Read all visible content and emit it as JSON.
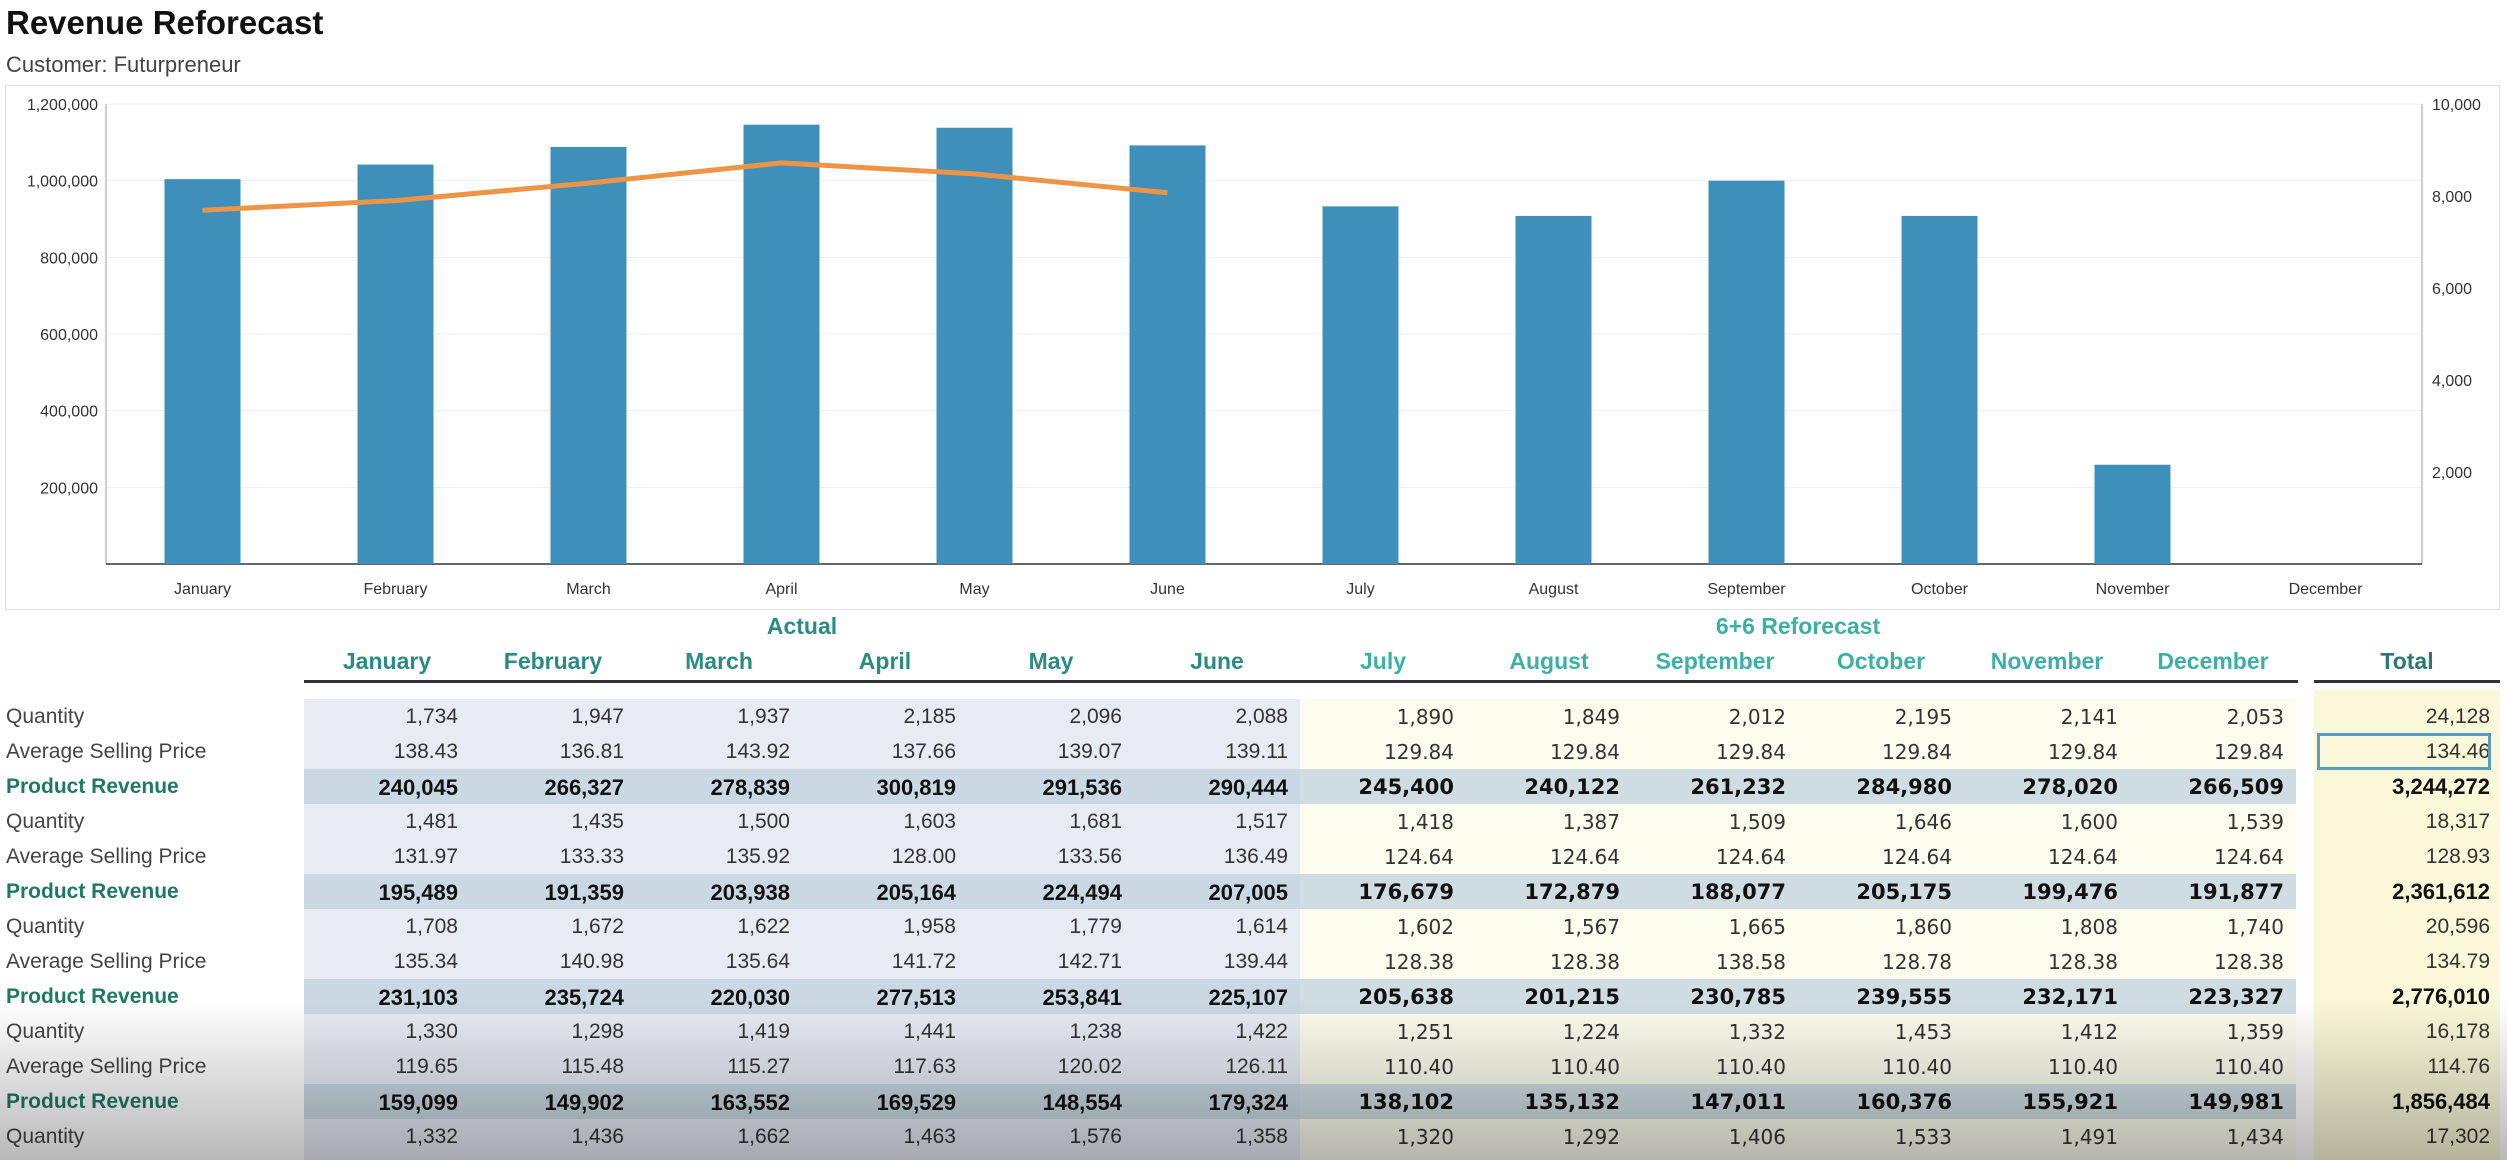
{
  "header": {
    "title": "Revenue Reforecast",
    "subtitle": "Customer: Futurpreneur"
  },
  "colors": {
    "bar": "#3f8fbb",
    "line": "#ee9447",
    "actual_bg": "#e7ebf4",
    "forecast_bg": "#fcfcee",
    "total_bg": "#faf8d8"
  },
  "chart_data": {
    "type": "bar",
    "categories": [
      "January",
      "February",
      "March",
      "April",
      "May",
      "June",
      "July",
      "August",
      "September",
      "October",
      "November",
      "December"
    ],
    "series": [
      {
        "name": "Revenue",
        "type": "bar",
        "axis": "left",
        "values": [
          1004000,
          1042000,
          1088000,
          1146000,
          1138000,
          1092000,
          933000,
          908000,
          1000000,
          908000,
          259000,
          0
        ]
      },
      {
        "name": "Quantity",
        "type": "line",
        "axis": "right",
        "values": [
          7690,
          7900,
          8280,
          8720,
          8480,
          8070,
          null,
          null,
          null,
          null,
          null,
          null
        ]
      }
    ],
    "left_axis": {
      "ylim": [
        0,
        1200000
      ],
      "ticks": [
        "200,000",
        "400,000",
        "600,000",
        "800,000",
        "1,000,000",
        "1,200,000"
      ],
      "tick_values": [
        200000,
        400000,
        600000,
        800000,
        1000000,
        1200000
      ]
    },
    "right_axis": {
      "ylim": [
        0,
        10000
      ],
      "ticks": [
        "2,000",
        "4,000",
        "6,000",
        "8,000",
        "10,000"
      ],
      "tick_values": [
        2000,
        4000,
        6000,
        8000,
        10000
      ]
    },
    "grid": true
  },
  "table": {
    "group_actual": "Actual",
    "group_forecast": "6+6 Reforecast",
    "months": [
      "January",
      "February",
      "March",
      "April",
      "May",
      "June",
      "July",
      "August",
      "September",
      "October",
      "November",
      "December"
    ],
    "total_label": "Total",
    "selected_cell": "134.46",
    "rows": [
      {
        "label": "Quantity",
        "type": "qty",
        "values": [
          "1,734",
          "1,947",
          "1,937",
          "2,185",
          "2,096",
          "2,088",
          "1,890",
          "1,849",
          "2,012",
          "2,195",
          "2,141",
          "2,053"
        ],
        "total": "24,128"
      },
      {
        "label": "Average Selling Price",
        "type": "asp",
        "values": [
          "138.43",
          "136.81",
          "143.92",
          "137.66",
          "139.07",
          "139.11",
          "129.84",
          "129.84",
          "129.84",
          "129.84",
          "129.84",
          "129.84"
        ],
        "total": "134.46"
      },
      {
        "label": "Product Revenue",
        "type": "rev",
        "values": [
          "240,045",
          "266,327",
          "278,839",
          "300,819",
          "291,536",
          "290,444",
          "245,400",
          "240,122",
          "261,232",
          "284,980",
          "278,020",
          "266,509"
        ],
        "total": "3,244,272"
      },
      {
        "label": "Quantity",
        "type": "qty",
        "values": [
          "1,481",
          "1,435",
          "1,500",
          "1,603",
          "1,681",
          "1,517",
          "1,418",
          "1,387",
          "1,509",
          "1,646",
          "1,600",
          "1,539"
        ],
        "total": "18,317"
      },
      {
        "label": "Average Selling Price",
        "type": "asp",
        "values": [
          "131.97",
          "133.33",
          "135.92",
          "128.00",
          "133.56",
          "136.49",
          "124.64",
          "124.64",
          "124.64",
          "124.64",
          "124.64",
          "124.64"
        ],
        "total": "128.93"
      },
      {
        "label": "Product Revenue",
        "type": "rev",
        "values": [
          "195,489",
          "191,359",
          "203,938",
          "205,164",
          "224,494",
          "207,005",
          "176,679",
          "172,879",
          "188,077",
          "205,175",
          "199,476",
          "191,877"
        ],
        "total": "2,361,612"
      },
      {
        "label": "Quantity",
        "type": "qty",
        "values": [
          "1,708",
          "1,672",
          "1,622",
          "1,958",
          "1,779",
          "1,614",
          "1,602",
          "1,567",
          "1,665",
          "1,860",
          "1,808",
          "1,740"
        ],
        "total": "20,596"
      },
      {
        "label": "Average Selling Price",
        "type": "asp",
        "values": [
          "135.34",
          "140.98",
          "135.64",
          "141.72",
          "142.71",
          "139.44",
          "128.38",
          "128.38",
          "138.58",
          "128.78",
          "128.38",
          "128.38"
        ],
        "total": "134.79"
      },
      {
        "label": "Product Revenue",
        "type": "rev",
        "values": [
          "231,103",
          "235,724",
          "220,030",
          "277,513",
          "253,841",
          "225,107",
          "205,638",
          "201,215",
          "230,785",
          "239,555",
          "232,171",
          "223,327"
        ],
        "total": "2,776,010"
      },
      {
        "label": "Quantity",
        "type": "qty",
        "values": [
          "1,330",
          "1,298",
          "1,419",
          "1,441",
          "1,238",
          "1,422",
          "1,251",
          "1,224",
          "1,332",
          "1,453",
          "1,412",
          "1,359"
        ],
        "total": "16,178"
      },
      {
        "label": "Average Selling Price",
        "type": "asp",
        "values": [
          "119.65",
          "115.48",
          "115.27",
          "117.63",
          "120.02",
          "126.11",
          "110.40",
          "110.40",
          "110.40",
          "110.40",
          "110.40",
          "110.40"
        ],
        "total": "114.76"
      },
      {
        "label": "Product Revenue",
        "type": "rev",
        "values": [
          "159,099",
          "149,902",
          "163,552",
          "169,529",
          "148,554",
          "179,324",
          "138,102",
          "135,132",
          "147,011",
          "160,376",
          "155,921",
          "149,981"
        ],
        "total": "1,856,484"
      },
      {
        "label": "Quantity",
        "type": "qty",
        "values": [
          "1,332",
          "1,436",
          "1,662",
          "1,463",
          "1,576",
          "1,358",
          "1,320",
          "1,292",
          "1,406",
          "1,533",
          "1,491",
          "1,434"
        ],
        "total": "17,302"
      }
    ]
  }
}
